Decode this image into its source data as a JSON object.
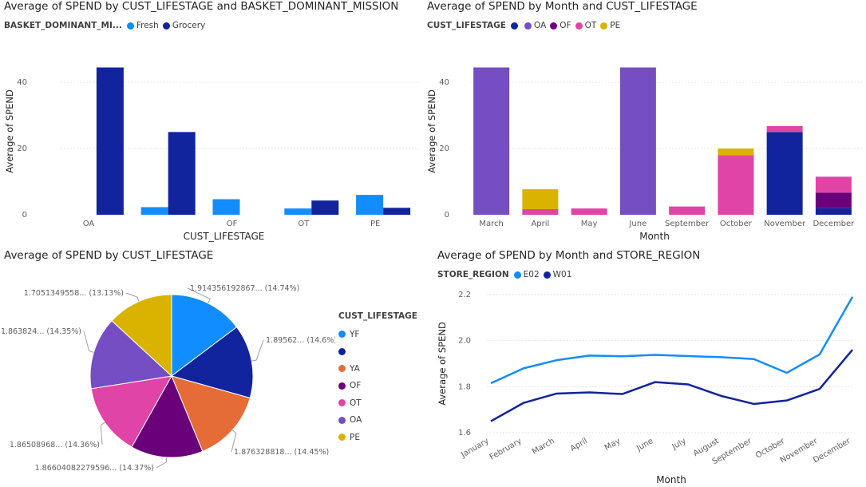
{
  "colors": {
    "fresh": "#118DFF",
    "grocery": "#12239E",
    "YF": "#118DFF",
    "blank": "#12239E",
    "YA": "#E66C37",
    "OF": "#6B007B",
    "OT": "#E044A7",
    "OA": "#744EC2",
    "PE": "#D9B300",
    "E02": "#118DFF",
    "W01": "#12239E"
  },
  "chart_data": [
    {
      "id": "chart1",
      "type": "bar",
      "title": "Average of SPEND by CUST_LIFESTAGE and BASKET_DOMINANT_MISSION",
      "legend_title": "BASKET_DOMINANT_MI...",
      "xlabel": "CUST_LIFESTAGE",
      "ylabel": "Average of SPEND",
      "categories": [
        "OA",
        "",
        "OF",
        "OT",
        "PE"
      ],
      "yticks": [
        0,
        20,
        40
      ],
      "ylim": [
        0,
        48
      ],
      "series": [
        {
          "name": "Fresh",
          "color_key": "fresh",
          "values": [
            null,
            2.3,
            4.7,
            1.9,
            6.0
          ]
        },
        {
          "name": "Grocery",
          "color_key": "grocery",
          "values": [
            44.5,
            25.0,
            null,
            4.3,
            2.1
          ]
        }
      ]
    },
    {
      "id": "chart2",
      "type": "stacked-bar",
      "title": "Average of SPEND by Month and CUST_LIFESTAGE",
      "legend_title": "CUST_LIFESTAGE",
      "xlabel": "Month",
      "ylabel": "Average of SPEND",
      "categories": [
        "March",
        "April",
        "May",
        "June",
        "September",
        "October",
        "November",
        "December"
      ],
      "yticks": [
        0,
        20,
        40
      ],
      "ylim": [
        0,
        48
      ],
      "series": [
        {
          "name": "",
          "color_key": "blank",
          "values": [
            0,
            0,
            0,
            0,
            0,
            0,
            25.0,
            2.0
          ]
        },
        {
          "name": "OA",
          "color_key": "OA",
          "values": [
            44.5,
            0,
            0,
            44.5,
            0,
            0,
            0,
            0
          ]
        },
        {
          "name": "OF",
          "color_key": "OF",
          "values": [
            0,
            0,
            0,
            0,
            0,
            0,
            0,
            4.7
          ]
        },
        {
          "name": "OT",
          "color_key": "OT",
          "values": [
            0,
            1.7,
            1.9,
            0,
            2.5,
            18.0,
            1.8,
            4.8
          ]
        },
        {
          "name": "PE",
          "color_key": "PE",
          "values": [
            0,
            6.0,
            0,
            0,
            0,
            2.0,
            0,
            0
          ]
        }
      ]
    },
    {
      "id": "chart3",
      "type": "pie",
      "title": "Average of SPEND by CUST_LIFESTAGE",
      "legend_title": "CUST_LIFESTAGE",
      "slices": [
        {
          "name": "YF",
          "color_key": "YF",
          "value": 1.914356192867,
          "pct": 14.74,
          "label": "1.914356192867... (14.74%)"
        },
        {
          "name": "",
          "color_key": "blank",
          "value": 1.89562,
          "pct": 14.6,
          "label": "1.89562... (14.6%)"
        },
        {
          "name": "YA",
          "color_key": "YA",
          "value": 1.876328818,
          "pct": 14.45,
          "label": "1.876328818... (14.45%)"
        },
        {
          "name": "OF",
          "color_key": "OF",
          "value": 1.86604082279596,
          "pct": 14.37,
          "label": "1.86604082279596... (14.37%)"
        },
        {
          "name": "OT",
          "color_key": "OT",
          "value": 1.86508968,
          "pct": 14.36,
          "label": "1.86508968... (14.36%)"
        },
        {
          "name": "OA",
          "color_key": "OA",
          "value": 1.863824,
          "pct": 14.35,
          "label": "1.863824... (14.35%)"
        },
        {
          "name": "PE",
          "color_key": "PE",
          "value": 1.7051349558,
          "pct": 13.13,
          "label": "1.7051349558... (13.13%)"
        }
      ]
    },
    {
      "id": "chart4",
      "type": "line",
      "title": "Average of SPEND by Month and STORE_REGION",
      "legend_title": "STORE_REGION",
      "xlabel": "Month",
      "ylabel": "Average of SPEND",
      "categories": [
        "January",
        "February",
        "March",
        "April",
        "May",
        "June",
        "July",
        "August",
        "September",
        "October",
        "November",
        "December"
      ],
      "yticks": [
        1.6,
        1.8,
        2.0,
        2.2
      ],
      "ylim": [
        1.6,
        2.2
      ],
      "series": [
        {
          "name": "E02",
          "color_key": "E02",
          "values": [
            1.815,
            1.88,
            1.915,
            1.935,
            1.932,
            1.938,
            1.933,
            1.928,
            1.92,
            1.86,
            1.94,
            2.19
          ]
        },
        {
          "name": "W01",
          "color_key": "W01",
          "values": [
            1.65,
            1.73,
            1.77,
            1.775,
            1.768,
            1.82,
            1.81,
            1.76,
            1.725,
            1.74,
            1.79,
            1.96
          ]
        }
      ]
    }
  ]
}
